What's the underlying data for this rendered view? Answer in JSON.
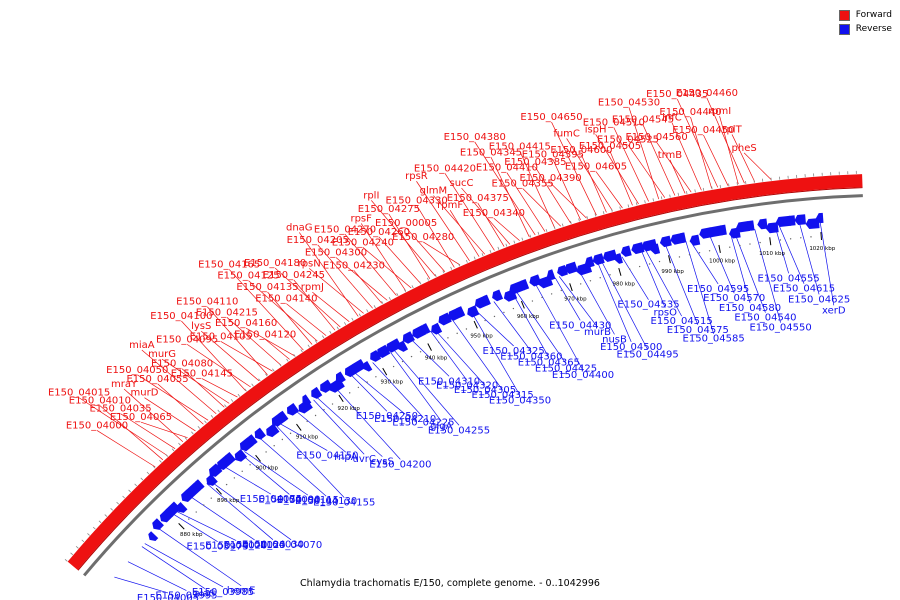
{
  "legend": {
    "items": [
      {
        "label": "Forward",
        "color": "#ee1111"
      },
      {
        "label": "Reverse",
        "color": "#1111ee"
      }
    ]
  },
  "caption": "Chlamydia trachomatis E/150, complete genome. - 0..1042996",
  "colors": {
    "forward": "#ee1111",
    "reverse": "#1111ee",
    "backbone": "#6e6e6e"
  },
  "scale": {
    "ticks": [
      "880 kbp",
      "890 kbp",
      "900 kbp",
      "910 kbp",
      "920 kbp",
      "930 kbp",
      "940 kbp",
      "950 kbp",
      "960 kbp",
      "970 kbp",
      "980 kbp",
      "990 kbp",
      "1000 kbp",
      "1010 kbp",
      "1020 kbp"
    ]
  },
  "forward_labels": [
    "pheS",
    "rplT",
    "rpmI",
    "E150_04460",
    "E150_04450",
    "E150_04440",
    "E150_04435",
    "infC",
    "trmB",
    "E150_04560",
    "E150_04545",
    "E150_04530",
    "E150_04525",
    "E150_04510",
    "E150_04505",
    "ispH",
    "E150_04605",
    "E150_04600",
    "fumC",
    "E150_04650",
    "E150_04395",
    "E150_04390",
    "E150_04385",
    "E150_04415",
    "E150_04355",
    "E150_04410",
    "E150_04345",
    "E150_04380",
    "E150_04340",
    "E150_04375",
    "sucC",
    "E150_04420",
    "rpmF",
    "glmM",
    "rpsR",
    "E150_04330",
    "E150_04280",
    "E150_00005",
    "E150_04275",
    "rplI",
    "E150_04260",
    "rpsF",
    "E150_04240",
    "E150_04270",
    "E150_04230",
    "E150_04300",
    "E150_04205",
    "dnaG",
    "rpsN",
    "rpmJ",
    "E150_04245",
    "E150_04180",
    "E150_04140",
    "E150_04135",
    "E150_04125",
    "E150_04165",
    "E150_04120",
    "E150_04160",
    "E150_04215",
    "E150_04110",
    "E150_04105",
    "lysS",
    "E150_04100",
    "E150_04095",
    "E150_04145",
    "E150_04080",
    "murG",
    "miaA",
    "E150_04055",
    "E150_04050",
    "murD",
    "mraY",
    "E150_04065",
    "E150_04035",
    "E150_04010",
    "E150_04015",
    "E150_04000"
  ],
  "reverse_labels": [
    "E150_04005",
    "E150_03995",
    "alaS",
    "E150_03985",
    "hemE",
    "E150_03975",
    "E150_04020",
    "E150_04025",
    "E150_04030",
    "E150_04070",
    "E150_04075",
    "E150_04090",
    "E150_04115",
    "E150_04130",
    "E150_04155",
    "E150_04150",
    "rnpA",
    "uvrC",
    "cysS",
    "E150_04200",
    "E150_04250",
    "E150_04210",
    "E150_04225",
    "glgA",
    "E150_04255",
    "E150_04310",
    "E150_04320",
    "E150_04305",
    "E150_04315",
    "E150_04350",
    "E150_04325",
    "E150_04360",
    "E150_04365",
    "E150_04425",
    "E150_04400",
    "E150_04430",
    "murB",
    "nusB",
    "E150_04500",
    "E150_04495",
    "E150_04535",
    "rpsO",
    "E150_04515",
    "E150_04575",
    "E150_04585",
    "E150_04595",
    "E150_04570",
    "E150_04580",
    "E150_04540",
    "E150_04550",
    "E150_04555",
    "E150_04615",
    "E150_04625",
    "xerD"
  ]
}
